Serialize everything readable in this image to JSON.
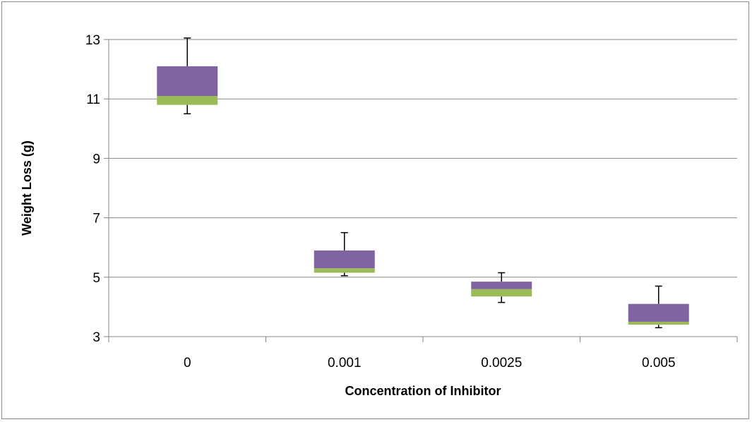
{
  "chart_data": {
    "type": "box",
    "xlabel": "Concentration of Inhibitor",
    "ylabel": "Weight Loss (g)",
    "categories": [
      "0",
      "0.001",
      "0.0025",
      "0.005"
    ],
    "yticks": [
      "3",
      "5",
      "7",
      "9",
      "11",
      "13"
    ],
    "ylim": [
      3,
      13
    ],
    "grid": true,
    "boxes": [
      {
        "category": "0",
        "min": 10.5,
        "q1": 10.8,
        "median": 11.1,
        "q3": 12.1,
        "max": 13.05
      },
      {
        "category": "0.001",
        "min": 5.05,
        "q1": 5.15,
        "median": 5.3,
        "q3": 5.9,
        "max": 6.5
      },
      {
        "category": "0.0025",
        "min": 4.15,
        "q1": 4.35,
        "median": 4.6,
        "q3": 4.85,
        "max": 5.15
      },
      {
        "category": "0.005",
        "min": 3.3,
        "q1": 3.4,
        "median": 3.5,
        "q3": 4.1,
        "max": 4.7
      }
    ],
    "colors": {
      "lower_box": "#9bbb59",
      "upper_box": "#8064a2",
      "gridline": "#868686",
      "whisker": "#000000"
    }
  }
}
